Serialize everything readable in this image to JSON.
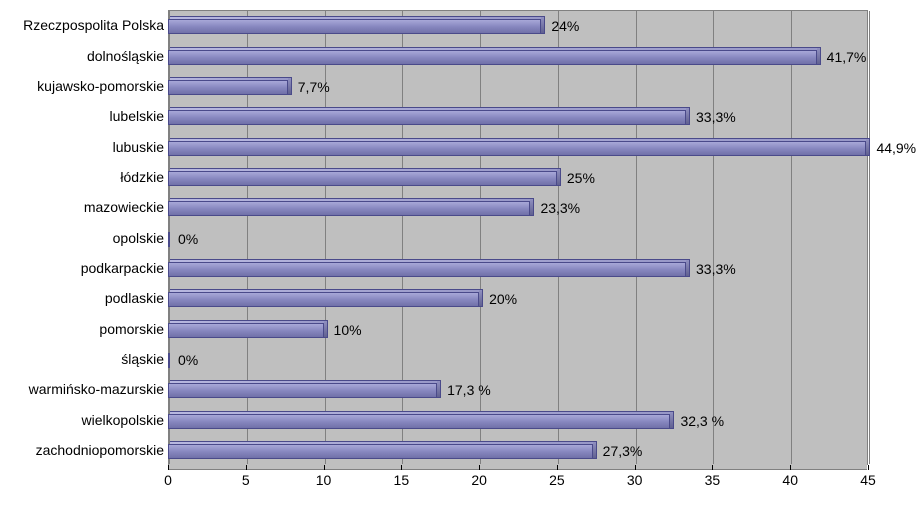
{
  "chart": {
    "type": "bar-horizontal",
    "background_color": "#bfbfbf",
    "grid_color": "#808080",
    "bar_color": "#8888c0",
    "bar_border_color": "#4a4a8a",
    "label_fontsize": 14,
    "xlim": [
      0,
      45
    ],
    "xtick_step": 5,
    "xticks": [
      "0",
      "5",
      "10",
      "15",
      "20",
      "25",
      "30",
      "35",
      "40",
      "45"
    ],
    "categories": [
      "Rzeczpospolita Polska",
      "dolnośląskie",
      "kujawsko-pomorskie",
      "lubelskie",
      "lubuskie",
      "łódzkie",
      "mazowieckie",
      "opolskie",
      "podkarpackie",
      "podlaskie",
      "pomorskie",
      "śląskie",
      "warmińsko-mazurskie",
      "wielkopolskie",
      "zachodniopomorskie"
    ],
    "values": [
      24,
      41.7,
      7.7,
      33.3,
      44.9,
      25,
      23.3,
      0,
      33.3,
      20,
      10,
      0,
      17.3,
      32.3,
      27.3
    ],
    "value_labels": [
      "24%",
      "41,7%",
      "7,7%",
      "33,3%",
      "44,9%",
      "25%",
      "23,3%",
      "0%",
      "33,3%",
      "20%",
      "10%",
      "0%",
      "17,3 %",
      "32,3 %",
      "27,3%"
    ]
  }
}
